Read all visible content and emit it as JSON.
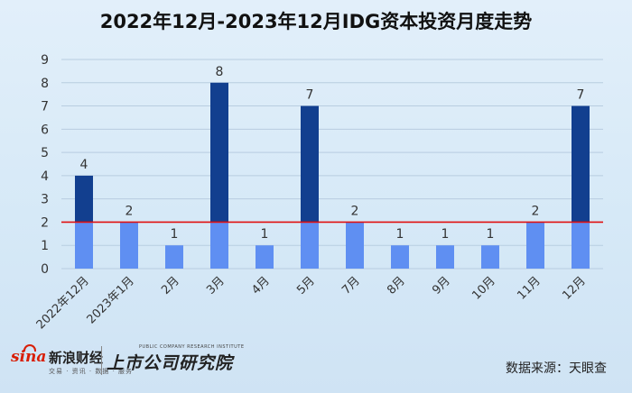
{
  "title": "2022年12月-2023年12月IDG资本投资月度走势",
  "footer": {
    "sina_word": "sina",
    "sina_name": "新浪财经",
    "sina_sub": "交易 · 资讯 · 数据 · 服务",
    "pcri_small": "PUBLIC COMPANY RESEARCH INSTITUTE",
    "pcri_name": "上市公司研究院",
    "source": "数据来源：天眼查"
  },
  "colors": {
    "bar_above": "#123f8f",
    "bar_below": "#5f8ff2",
    "reference_line": "#e01010",
    "grid": "#b8cde0"
  },
  "chart_data": {
    "type": "bar",
    "categories": [
      "2022年12月",
      "2023年1月",
      "2月",
      "3月",
      "4月",
      "5月",
      "7月",
      "8月",
      "9月",
      "10月",
      "11月",
      "12月"
    ],
    "values": [
      4,
      2,
      1,
      8,
      1,
      7,
      2,
      1,
      1,
      1,
      2,
      7
    ],
    "yticks": [
      0,
      1,
      2,
      3,
      4,
      5,
      6,
      7,
      8,
      9
    ],
    "ylim": [
      0,
      9
    ],
    "reference_line": 2,
    "grid": true,
    "xlabel": "",
    "ylabel": ""
  }
}
